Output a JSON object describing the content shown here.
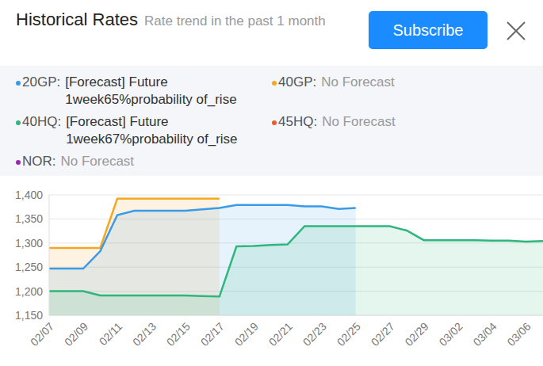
{
  "header": {
    "title": "Historical Rates",
    "subtitle": "Rate trend in the past 1 month",
    "button": "Subscribe"
  },
  "forecasts": [
    {
      "name": "20GP:",
      "color": "#3a9ae8",
      "text": "[Forecast] Future 1week65%probability of_rise"
    },
    {
      "name": "40GP:",
      "color": "#f5a623",
      "text": "No Forecast"
    },
    {
      "name": "40HQ:",
      "color": "#2eb67d",
      "text": "[Forecast] Future 1week67%probability of_rise"
    },
    {
      "name": "45HQ:",
      "color": "#f05a28",
      "text": "No Forecast"
    },
    {
      "name": "NOR:",
      "color": "#9c27b0",
      "text": "No Forecast"
    }
  ],
  "chart_data": {
    "type": "area",
    "categories": [
      "02/07",
      null,
      "02/09",
      null,
      "02/11",
      null,
      "02/13",
      null,
      "02/15",
      null,
      "02/17",
      null,
      "02/19",
      null,
      "02/21",
      null,
      "02/23",
      null,
      "02/25",
      null,
      "02/27",
      null,
      "02/29",
      null,
      "03/02",
      null,
      "03/04",
      null,
      "03/06",
      null
    ],
    "series": [
      {
        "name": "40GP",
        "color": "#f5a623",
        "values": [
          1290,
          1290,
          1290,
          1290,
          1392,
          1392,
          1392,
          1392,
          1392,
          1392,
          1392,
          null,
          null,
          null,
          null,
          null,
          null,
          null,
          null,
          null,
          null,
          null,
          null,
          null,
          null,
          null,
          null,
          null,
          null,
          null
        ]
      },
      {
        "name": "20GP",
        "color": "#3a9ae8",
        "values": [
          1247,
          1247,
          1247,
          1283,
          1358,
          1367,
          1367,
          1367,
          1367,
          1370,
          1373,
          1379,
          1379,
          1379,
          1379,
          1376,
          1376,
          1371,
          1373,
          null,
          null,
          null,
          null,
          null,
          null,
          null,
          null,
          null,
          null,
          null
        ]
      },
      {
        "name": "40HQ",
        "color": "#2eb67d",
        "values": [
          1200,
          1200,
          1200,
          1191,
          1191,
          1191,
          1191,
          1191,
          1191,
          1190,
          1189,
          1293,
          1294,
          1296,
          1297,
          1335,
          1335,
          1335,
          1335,
          1335,
          1335,
          1326,
          1306,
          1306,
          1306,
          1306,
          1305,
          1305,
          1303,
          1304
        ]
      }
    ],
    "ylim": [
      1150,
      1400
    ],
    "yticks": [
      {
        "value": 1150,
        "label": "1,150"
      },
      {
        "value": 1200,
        "label": "1,200"
      },
      {
        "value": 1250,
        "label": "1,250"
      },
      {
        "value": 1300,
        "label": "1,300"
      },
      {
        "value": 1350,
        "label": "1,350"
      },
      {
        "value": 1400,
        "label": "1,400"
      }
    ],
    "grid": true
  }
}
